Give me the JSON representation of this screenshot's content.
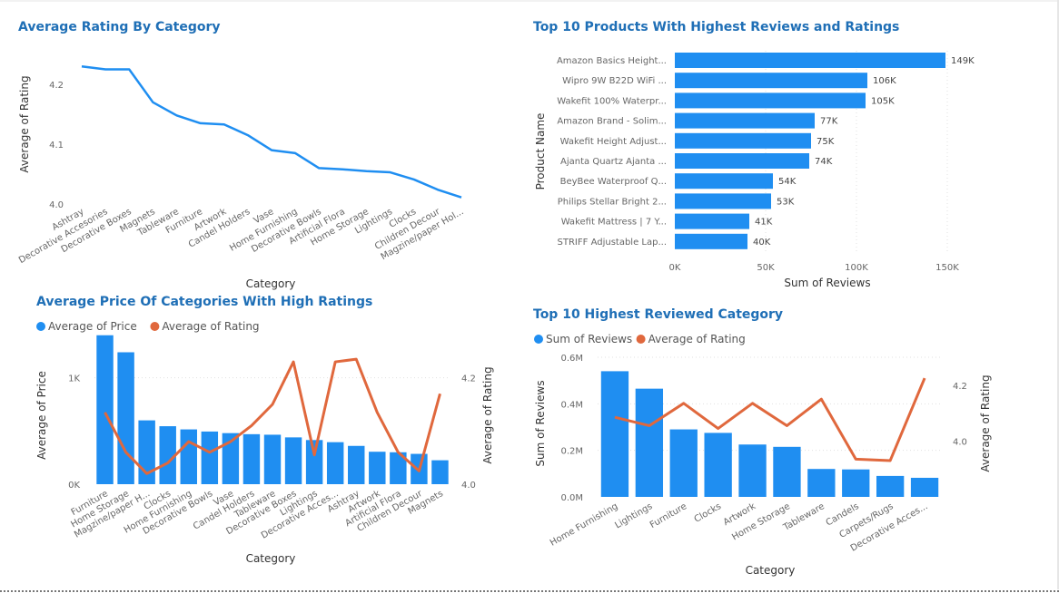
{
  "colors": {
    "blue": "#1f8ef1",
    "orange": "#e0683d",
    "title": "#1f6fb6"
  },
  "chart_data": [
    {
      "id": "c1",
      "type": "line",
      "title": "Average Rating By Category",
      "xlabel": "Category",
      "ylabel": "Average of Rating",
      "categories": [
        "Ashtray",
        "Decorative Accesories",
        "Decorative Boxes",
        "Magnets",
        "Tableware",
        "Furniture",
        "Artwork",
        "Candel Holders",
        "Vase",
        "Home Furnishing",
        "Decorative Bowls",
        "Artificial Flora",
        "Home Storage",
        "Lightings",
        "Clocks",
        "Children Decour",
        "Magzine/paper Hol..."
      ],
      "values": [
        4.23,
        4.225,
        4.225,
        4.17,
        4.148,
        4.135,
        4.133,
        4.115,
        4.09,
        4.085,
        4.06,
        4.058,
        4.055,
        4.053,
        4.041,
        4.024,
        4.011
      ],
      "ylim": [
        4.0,
        4.25
      ],
      "yticks": [
        {
          "value": 4.0,
          "label": "4.0"
        },
        {
          "value": 4.1,
          "label": "4.1"
        },
        {
          "value": 4.2,
          "label": "4.2"
        }
      ]
    },
    {
      "id": "c2",
      "type": "bar",
      "orientation": "horizontal",
      "title": "Top 10 Products With Highest Reviews and Ratings",
      "xlabel": "Sum of Reviews",
      "ylabel": "Product Name",
      "categories": [
        "Amazon Basics Height...",
        "Wipro 9W B22D WiFi ...",
        "Wakefit 100% Waterpr...",
        "Amazon Brand - Solim...",
        "Wakefit Height Adjust...",
        "Ajanta Quartz Ajanta ...",
        "BeyBee Waterproof Q...",
        "Philips Stellar Bright 2...",
        "Wakefit Mattress | 7 Y...",
        "STRIFF Adjustable Lap..."
      ],
      "values": [
        149000,
        106000,
        105000,
        77000,
        75000,
        74000,
        54000,
        53000,
        41000,
        40000
      ],
      "data_labels": [
        "149K",
        "106K",
        "105K",
        "77K",
        "75K",
        "74K",
        "54K",
        "53K",
        "41K",
        "40K"
      ],
      "xlim": [
        0,
        150000
      ],
      "xticks": [
        {
          "value": 0,
          "label": "0K"
        },
        {
          "value": 50000,
          "label": "50K"
        },
        {
          "value": 100000,
          "label": "100K"
        },
        {
          "value": 150000,
          "label": "150K"
        }
      ]
    },
    {
      "id": "c3",
      "type": "bar",
      "title": "Average Price Of Categories With High Ratings",
      "xlabel": "Category",
      "ylabel": "Average of Price",
      "y2label": "Average of Rating",
      "legend": [
        "Average of Price",
        "Average of Rating"
      ],
      "categories": [
        "Furniture",
        "Home Storage",
        "Magzine/paper H...",
        "Clocks",
        "Home Furnishing",
        "Decorative Bowls",
        "Vase",
        "Candel Holders",
        "Tableware",
        "Decorative Boxes",
        "Lightings",
        "Decorative Acces...",
        "Ashtray",
        "Artwork",
        "Artificial Flora",
        "Children Decour",
        "Magnets"
      ],
      "series": [
        {
          "name": "Average of Price",
          "type": "bar",
          "values": [
            1400,
            1240,
            600,
            545,
            515,
            495,
            480,
            470,
            465,
            440,
            415,
            395,
            360,
            305,
            300,
            285,
            225
          ]
        },
        {
          "name": "Average of Rating",
          "type": "line",
          "values": [
            4.135,
            4.06,
            4.02,
            4.04,
            4.08,
            4.06,
            4.08,
            4.11,
            4.15,
            4.23,
            4.055,
            4.23,
            4.235,
            4.135,
            4.06,
            4.025,
            4.17
          ]
        }
      ],
      "ylim": [
        0,
        1500
      ],
      "y2lim": [
        4.0,
        4.3
      ],
      "yticks": [
        {
          "value": 0,
          "label": "0K"
        },
        {
          "value": 1000,
          "label": "1K"
        }
      ],
      "y2ticks": [
        {
          "value": 4.0,
          "label": "4.0"
        },
        {
          "value": 4.2,
          "label": "4.2"
        }
      ]
    },
    {
      "id": "c4",
      "type": "bar",
      "title": "Top 10 Highest Reviewed Category",
      "xlabel": "Category",
      "ylabel": "Sum of Reviews",
      "y2label": "Average of Rating",
      "legend": [
        "Sum of Reviews",
        "Average of Rating"
      ],
      "categories": [
        "Home Furnishing",
        "Lightings",
        "Furniture",
        "Clocks",
        "Artwork",
        "Home Storage",
        "Tableware",
        "Candels",
        "Carpets/Rugs",
        "Decorative Acces..."
      ],
      "series": [
        {
          "name": "Sum of Reviews",
          "type": "bar",
          "values": [
            540000,
            465000,
            290000,
            275000,
            225000,
            215000,
            120000,
            118000,
            90000,
            82000
          ]
        },
        {
          "name": "Average of Rating",
          "type": "line",
          "values": [
            4.085,
            4.055,
            4.135,
            4.045,
            4.135,
            4.055,
            4.15,
            3.935,
            3.93,
            4.225
          ]
        }
      ],
      "ylim": [
        0,
        600000
      ],
      "y2lim": [
        3.8,
        4.3
      ],
      "yticks": [
        {
          "value": 0,
          "label": "0.0M"
        },
        {
          "value": 200000,
          "label": "0.2M"
        },
        {
          "value": 400000,
          "label": "0.4M"
        },
        {
          "value": 600000,
          "label": "0.6M"
        }
      ],
      "y2ticks": [
        {
          "value": 4.0,
          "label": "4.0"
        },
        {
          "value": 4.2,
          "label": "4.2"
        }
      ]
    }
  ]
}
